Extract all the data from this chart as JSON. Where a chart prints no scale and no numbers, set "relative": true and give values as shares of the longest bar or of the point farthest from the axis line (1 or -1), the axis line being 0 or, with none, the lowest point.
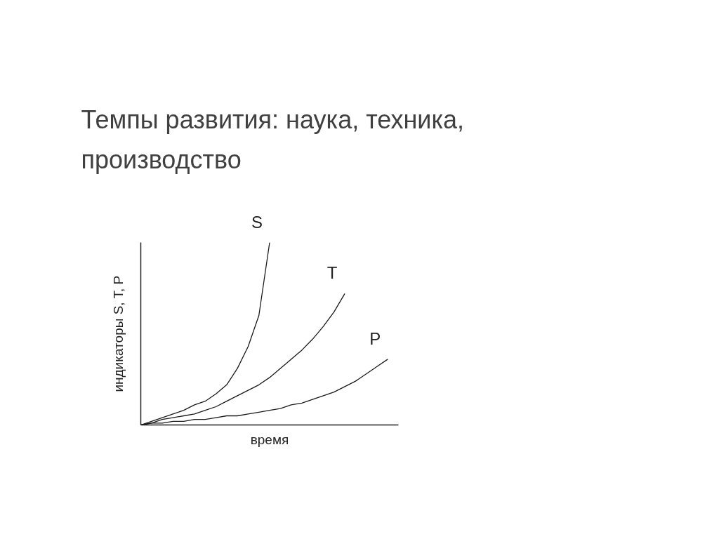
{
  "chart_data": {
    "type": "line",
    "relative": true,
    "title": "Темпы развития: наука, техника, производство",
    "xlabel": "время",
    "ylabel": "индикаторы S, T, P",
    "categories": [
      null,
      null,
      null,
      null,
      null,
      null,
      null,
      null,
      null,
      null,
      null,
      null,
      null,
      null,
      null,
      null,
      null,
      null,
      null,
      null,
      null,
      null,
      null,
      null,
      null
    ],
    "series": [
      {
        "name": "S",
        "color": "#1a1a1a",
        "values": [
          0,
          0.02,
          0.04,
          0.06,
          0.08,
          0.11,
          0.13,
          0.17,
          0.22,
          0.31,
          0.43,
          0.6,
          1.0,
          null,
          null,
          null,
          null,
          null,
          null,
          null,
          null,
          null,
          null,
          null,
          null
        ]
      },
      {
        "name": "T",
        "color": "#1a1a1a",
        "values": [
          0,
          0.01,
          0.03,
          0.04,
          0.05,
          0.06,
          0.08,
          0.1,
          0.13,
          0.16,
          0.19,
          0.22,
          0.26,
          0.31,
          0.36,
          0.41,
          0.47,
          0.54,
          0.62,
          0.72,
          null,
          null,
          null,
          null,
          null
        ]
      },
      {
        "name": "P",
        "color": "#1a1a1a",
        "values": [
          0,
          0.01,
          0.01,
          0.02,
          0.02,
          0.03,
          0.03,
          0.04,
          0.05,
          0.05,
          0.06,
          0.07,
          0.08,
          0.09,
          0.11,
          0.12,
          0.14,
          0.16,
          0.18,
          0.21,
          0.24,
          0.28,
          0.32,
          0.36,
          null
        ]
      }
    ],
    "marker": "none",
    "line_style": "solid"
  }
}
